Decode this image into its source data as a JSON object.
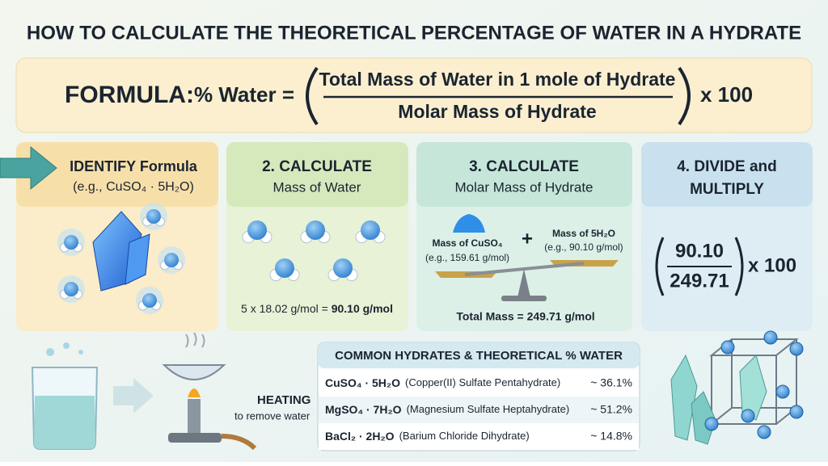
{
  "title": "HOW TO CALCULATE THE THEORETICAL PERCENTAGE OF WATER IN A HYDRATE",
  "formula": {
    "label": "FORMULA:",
    "lhs": "% Water =",
    "numerator": "Total Mass of Water in 1 mole of Hydrate",
    "denominator": "Molar Mass of Hydrate",
    "multiplier": "x 100"
  },
  "steps": [
    {
      "title": "IDENTIFY Formula",
      "subtitle": "(e.g., CuSO₄ · 5H₂O)"
    },
    {
      "title": "2. CALCULATE",
      "subtitle": "Mass of Water",
      "calculation": "5 x 18.02 g/mol =",
      "result": "90.10 g/mol"
    },
    {
      "title": "3. CALCULATE",
      "subtitle": "Molar Mass of Hydrate",
      "left_label": "Mass of CuSO₄",
      "left_example": "(e.g., 159.61 g/mol)",
      "operator": "+",
      "right_label": "Mass of 5H₂O",
      "right_example": "(e.g., 90.10 g/mol)",
      "total": "Total Mass = 249.71 g/mol"
    },
    {
      "title": "4. DIVIDE and",
      "subtitle": "MULTIPLY",
      "numerator": "90.10",
      "denominator": "249.71",
      "multiplier": "x 100"
    }
  ],
  "heating": {
    "label": "HEATING",
    "sublabel": "to remove water"
  },
  "table": {
    "title": "COMMON HYDRATES & THEORETICAL % WATER",
    "rows": [
      [
        "CuSO₄ · 5H₂O",
        "(Copper(II) Sulfate Pentahydrate)",
        "~ 36.1%"
      ],
      [
        "MgSO₄ · 7H₂O",
        "(Magnesium Sulfate Heptahydrate)",
        "~ 51.2%"
      ],
      [
        "BaCl₂ · 2H₂O",
        "(Barium Chloride Dihydrate)",
        "~ 14.8%"
      ]
    ]
  }
}
